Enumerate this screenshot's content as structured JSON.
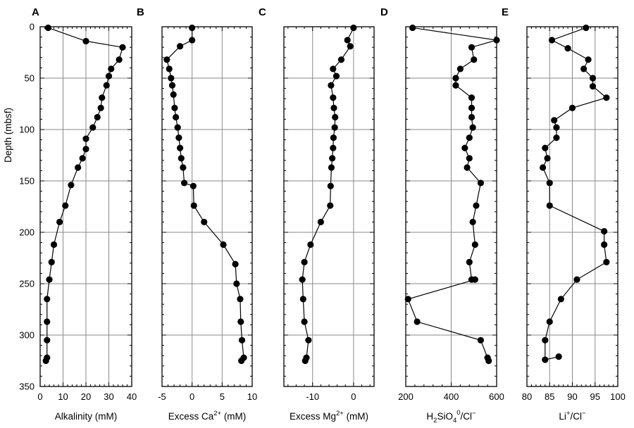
{
  "chart_data": [
    {
      "type": "scatter",
      "panel": "A",
      "xlabel": "Alkalinity (mM)",
      "ylabel": "Depth (mbsf)",
      "xlim": [
        0,
        40
      ],
      "ylim": [
        0,
        350
      ],
      "xticks": [
        0,
        10,
        20,
        30,
        40
      ],
      "yticks": [
        0,
        50,
        100,
        150,
        200,
        250,
        300,
        350
      ],
      "grid": true,
      "series": [
        {
          "x": [
            3.5,
            20,
            36,
            34.5,
            31,
            30,
            29,
            27,
            26.5,
            25,
            23,
            20,
            20,
            18.5,
            16.5,
            13.5,
            11,
            8.5,
            6,
            5,
            4,
            3,
            3,
            3,
            3,
            2.5
          ],
          "y": [
            1,
            14,
            20,
            32,
            41,
            48,
            57,
            69,
            79,
            88,
            98,
            109,
            119,
            128,
            137,
            154,
            174,
            190,
            212,
            229,
            246,
            265,
            287,
            305,
            322,
            325
          ]
        }
      ]
    },
    {
      "type": "scatter",
      "panel": "B",
      "xlabel": "Excess Ca2+ (mM)",
      "xlabel_main": "Excess Ca",
      "xlabel_sup": "2+",
      "xlabel_tail": " (mM)",
      "xlim": [
        -5,
        10
      ],
      "ylim": [
        0,
        350
      ],
      "xticks": [
        -5,
        0,
        5,
        10
      ],
      "grid": true,
      "series": [
        {
          "x": [
            0,
            0,
            -2,
            -4.2,
            -3.8,
            -3.5,
            -3.3,
            -3.1,
            -2.9,
            -2.7,
            -2.4,
            -2.2,
            -2.0,
            -1.8,
            -1.5,
            -1.3,
            0.2,
            0.3,
            2.0,
            5.2,
            7.2,
            7.4,
            8.0,
            8.1,
            8.3,
            8.6,
            8.2
          ],
          "y": [
            1,
            13,
            19,
            32,
            41,
            50,
            57,
            66,
            79,
            88,
            98,
            108,
            118,
            128,
            137,
            152,
            155,
            174,
            190,
            212,
            231,
            250,
            265,
            287,
            305,
            322,
            325
          ]
        }
      ]
    },
    {
      "type": "scatter",
      "panel": "C",
      "xlabel": "Excess Mg2+ (mM)",
      "xlabel_main": "Excess Mg",
      "xlabel_sup": "2+",
      "xlabel_tail": " (mM)",
      "xlim": [
        -17,
        5
      ],
      "ylim": [
        0,
        350
      ],
      "xticks": [
        -10,
        0
      ],
      "grid": true,
      "series": [
        {
          "x": [
            0,
            -1.5,
            -0.8,
            -3.0,
            -5.0,
            -4.2,
            -5.5,
            -5.0,
            -4.8,
            -4.5,
            -4.6,
            -4.9,
            -5.0,
            -5.2,
            -5.4,
            -5.6,
            -5.7,
            -8.0,
            -10.5,
            -12.0,
            -12.5,
            -12.3,
            -12.0,
            -11.0,
            -11.5,
            -11.8
          ],
          "y": [
            1,
            13,
            19,
            32,
            41,
            48,
            57,
            69,
            79,
            88,
            98,
            108,
            118,
            128,
            137,
            155,
            174,
            190,
            212,
            229,
            246,
            265,
            287,
            305,
            322,
            325
          ]
        }
      ]
    },
    {
      "type": "scatter",
      "panel": "D",
      "xlabel": "H2SiO40/Cl−",
      "xlabel_parts": [
        "H",
        "2",
        "SiO",
        "4",
        "0",
        "/Cl",
        "−"
      ],
      "xlim": [
        200,
        600
      ],
      "ylim": [
        0,
        350
      ],
      "xticks": [
        200,
        400,
        600
      ],
      "grid": true,
      "series": [
        {
          "x": [
            230,
            600,
            490,
            500,
            440,
            420,
            420,
            490,
            490,
            490,
            495,
            480,
            460,
            480,
            470,
            530,
            510,
            495,
            505,
            480,
            490,
            505,
            210,
            250,
            530,
            560,
            565
          ],
          "y": [
            1,
            13,
            20,
            32,
            41,
            50,
            57,
            69,
            79,
            88,
            98,
            108,
            118,
            128,
            137,
            152,
            174,
            190,
            212,
            229,
            246,
            246,
            265,
            287,
            305,
            322,
            325
          ]
        }
      ]
    },
    {
      "type": "scatter",
      "panel": "E",
      "xlabel": "Li+/Cl−",
      "xlabel_parts": [
        "Li",
        "+",
        "/Cl",
        "−"
      ],
      "xlim": [
        80,
        100
      ],
      "ylim": [
        0,
        350
      ],
      "xticks": [
        80,
        85,
        90,
        95,
        100
      ],
      "grid": true,
      "series": [
        {
          "x": [
            93,
            85.5,
            89,
            93.5,
            92.5,
            94.5,
            94.5,
            97.5,
            90,
            86,
            86.5,
            86.5,
            84,
            84.5,
            83.5,
            85,
            85,
            97,
            97,
            97.5,
            91,
            87.5,
            85,
            84,
            84,
            87
          ],
          "y": [
            1,
            13,
            21,
            32,
            41,
            50,
            58,
            69,
            79,
            91,
            98,
            108,
            118,
            128,
            137,
            152,
            174,
            199,
            212,
            229,
            246,
            265,
            287,
            305,
            324,
            321
          ]
        }
      ]
    }
  ],
  "panels": {
    "A": {
      "letter": "A"
    },
    "B": {
      "letter": "B"
    },
    "C": {
      "letter": "C"
    },
    "D": {
      "letter": "D"
    },
    "E": {
      "letter": "E"
    }
  }
}
